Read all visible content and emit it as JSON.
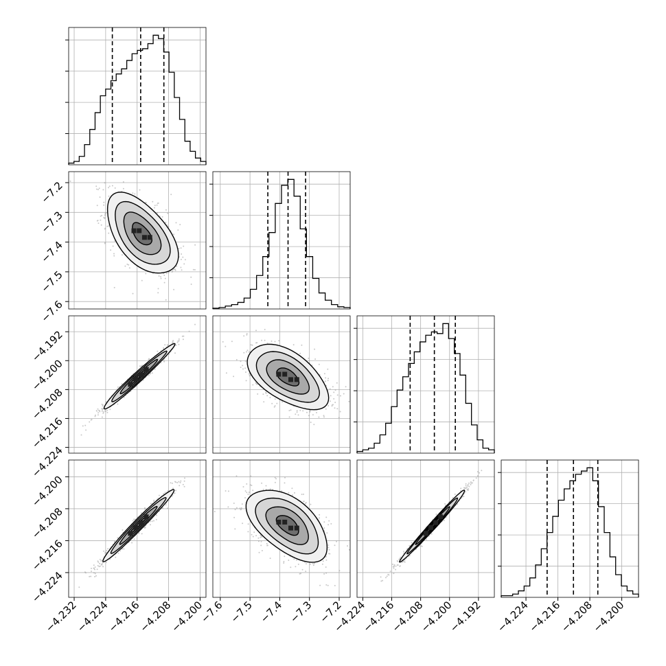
{
  "chart_data": {
    "type": "corner",
    "grid": true,
    "quantile_lines": "dashed",
    "parameters": [
      {
        "axis_ticks": [
          -4.232,
          -4.224,
          -4.216,
          -4.208,
          -4.2
        ],
        "axis_tick_labels": [
          "−4.232",
          "−4.224",
          "−4.216",
          "−4.208",
          "−4.200"
        ],
        "range": [
          -4.2334,
          -4.1985
        ],
        "quantiles": [
          -4.2223,
          -4.2151,
          -4.2092
        ],
        "hist_counts": [
          1,
          2,
          5,
          12,
          21,
          31,
          41,
          45,
          50,
          54,
          57,
          62,
          66,
          68,
          69,
          72,
          77,
          75,
          67,
          55,
          40,
          27,
          14,
          8,
          4,
          2
        ]
      },
      {
        "axis_ticks": [
          -7.6,
          -7.5,
          -7.4,
          -7.3,
          -7.2
        ],
        "axis_tick_labels": [
          "−7.6",
          "−7.5",
          "−7.4",
          "−7.3",
          "−7.2"
        ],
        "range": [
          -7.625,
          -7.163
        ],
        "quantiles": [
          -7.44,
          -7.372,
          -7.313
        ],
        "hist_counts": [
          1,
          2,
          4,
          6,
          9,
          15,
          27,
          46,
          72,
          105,
          145,
          170,
          178,
          155,
          110,
          72,
          42,
          22,
          12,
          6,
          3,
          2
        ]
      },
      {
        "axis_ticks": [
          -4.192,
          -4.2,
          -4.208,
          -4.216,
          -4.224
        ],
        "axis_tick_labels": [
          "−4.192",
          "−4.200",
          "−4.208",
          "−4.216",
          "−4.224"
        ],
        "range": [
          -4.2256,
          -4.1876
        ],
        "quantiles": [
          -4.2109,
          -4.2042,
          -4.1984
        ],
        "hist_counts": [
          1,
          2,
          3,
          6,
          11,
          18,
          28,
          38,
          46,
          54,
          61,
          67,
          71,
          73,
          72,
          78,
          69,
          60,
          47,
          30,
          17,
          8,
          3,
          2
        ]
      },
      {
        "axis_ticks": [
          -4.224,
          -4.216,
          -4.208,
          -4.2
        ],
        "axis_tick_labels": [
          "−4.224",
          "−4.216",
          "−4.208",
          "−4.200"
        ],
        "range": [
          -4.2302,
          -4.1958
        ],
        "quantiles": [
          -4.2187,
          -4.2121,
          -4.206
        ],
        "hist_counts": [
          1,
          1,
          2,
          4,
          7,
          12,
          20,
          30,
          40,
          50,
          60,
          67,
          72,
          76,
          78,
          80,
          72,
          56,
          40,
          25,
          14,
          7,
          4,
          2
        ]
      }
    ],
    "pairs": [
      {
        "x": 0,
        "y": 1,
        "center": [
          -4.2148,
          -7.373
        ],
        "spread": [
          0.0045,
          0.068
        ],
        "rho": -0.55
      },
      {
        "x": 0,
        "y": 2,
        "center": [
          -4.2157,
          -4.2045
        ],
        "spread": [
          0.0045,
          0.0045
        ],
        "rho": 0.98
      },
      {
        "x": 1,
        "y": 2,
        "center": [
          -7.373,
          -4.2045
        ],
        "spread": [
          0.068,
          0.0045
        ],
        "rho": -0.55
      },
      {
        "x": 0,
        "y": 3,
        "center": [
          -4.2157,
          -4.2121
        ],
        "spread": [
          0.0045,
          0.0045
        ],
        "rho": 0.98
      },
      {
        "x": 1,
        "y": 3,
        "center": [
          -7.373,
          -4.2121
        ],
        "spread": [
          0.068,
          0.0045
        ],
        "rho": -0.55
      },
      {
        "x": 2,
        "y": 3,
        "center": [
          -4.2045,
          -4.2121
        ],
        "spread": [
          0.0045,
          0.0045
        ],
        "rho": 0.99
      }
    ]
  },
  "colors": {
    "background": "#ffffff",
    "line": "#000000",
    "grid": "#b0b0b0",
    "scatter": "#9a9a9a"
  }
}
